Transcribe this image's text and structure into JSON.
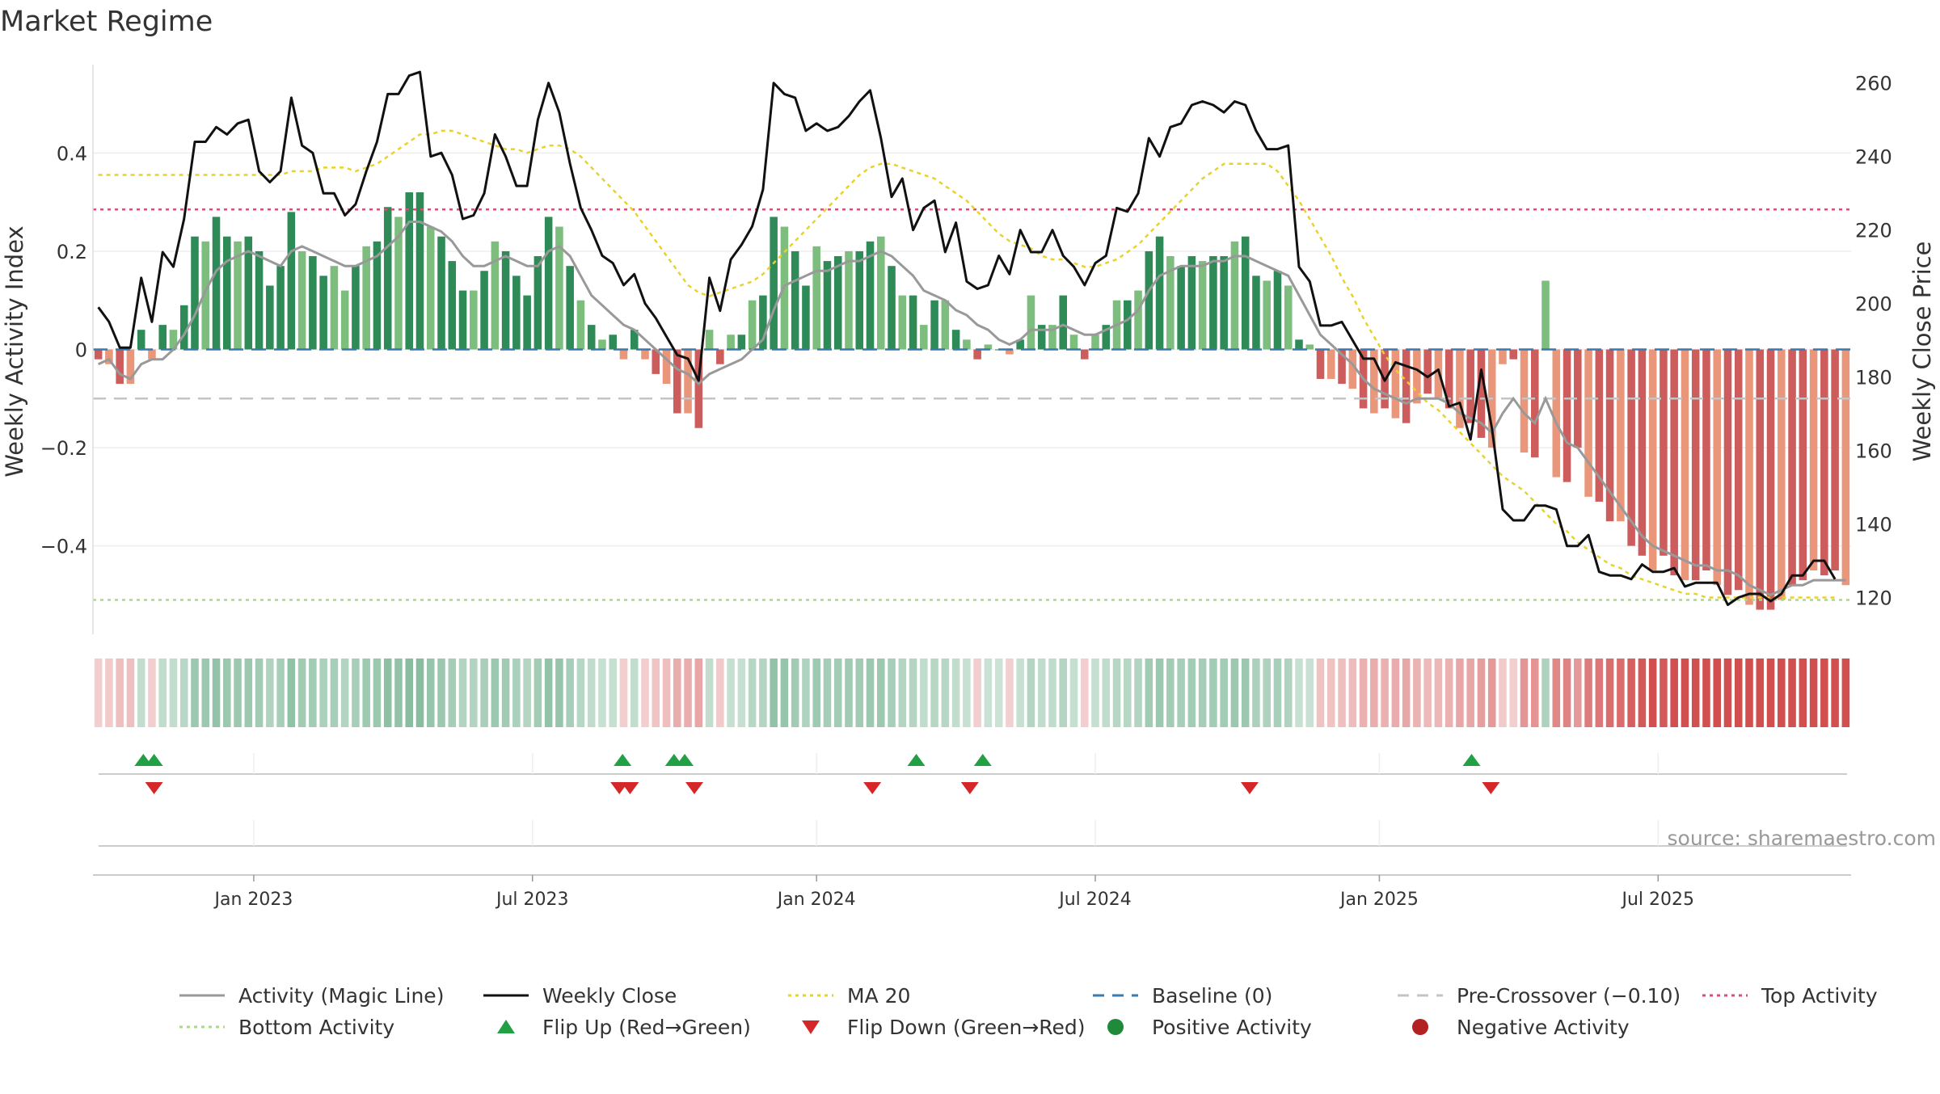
{
  "chart_data": {
    "type": "bar",
    "title": "Market Regime",
    "ylabel": "Weekly Activity Index",
    "y2label": "Weekly Close Price",
    "source": "source: sharemaestro.com",
    "ylim": [
      -0.58,
      0.58
    ],
    "y2lim": [
      110,
      265
    ],
    "y_ticks": [
      0.4,
      0.2,
      0,
      -0.2,
      -0.4
    ],
    "y_tick_labels": [
      "0.4",
      "0.2",
      "0",
      "−0.2",
      "−0.4"
    ],
    "y2_ticks": [
      260,
      240,
      220,
      200,
      180,
      160,
      140,
      120
    ],
    "y2_tick_labels": [
      "260",
      "240",
      "220",
      "200",
      "180",
      "160",
      "140",
      "120"
    ],
    "x_tick_labels": [
      "Jan 2023",
      "Jul 2023",
      "Jan 2024",
      "Jul 2024",
      "Jan 2025",
      "Jul 2025"
    ],
    "x_tick_weeks": [
      14.5,
      40.5,
      67,
      93,
      119.5,
      145.5
    ],
    "grid": true,
    "legend_position": "bottom",
    "reference_lines": {
      "baseline": 0,
      "pre_crossover": -0.1,
      "top_activity": 0.285,
      "bottom_activity": -0.51
    },
    "activity": [
      -0.02,
      -0.03,
      -0.07,
      -0.07,
      0.04,
      -0.02,
      0.05,
      0.04,
      0.09,
      0.23,
      0.22,
      0.27,
      0.23,
      0.22,
      0.23,
      0.2,
      0.13,
      0.17,
      0.28,
      0.2,
      0.19,
      0.15,
      0.17,
      0.12,
      0.17,
      0.21,
      0.22,
      0.29,
      0.27,
      0.32,
      0.32,
      0.25,
      0.23,
      0.18,
      0.12,
      0.12,
      0.16,
      0.22,
      0.2,
      0.15,
      0.11,
      0.19,
      0.27,
      0.25,
      0.17,
      0.1,
      0.05,
      0.02,
      0.03,
      -0.02,
      0.04,
      -0.02,
      -0.05,
      -0.07,
      -0.13,
      -0.13,
      -0.16,
      0.04,
      -0.03,
      0.03,
      0.03,
      0.1,
      0.11,
      0.27,
      0.25,
      0.2,
      0.13,
      0.21,
      0.18,
      0.19,
      0.2,
      0.2,
      0.22,
      0.23,
      0.17,
      0.11,
      0.11,
      0.05,
      0.1,
      0.1,
      0.04,
      0.02,
      -0.02,
      0.01,
      0,
      -0.01,
      0.02,
      0.11,
      0.05,
      0.05,
      0.11,
      0.03,
      -0.02,
      0.03,
      0.05,
      0.1,
      0.1,
      0.12,
      0.2,
      0.23,
      0.19,
      0.17,
      0.19,
      0.18,
      0.19,
      0.19,
      0.22,
      0.23,
      0.15,
      0.14,
      0.16,
      0.13,
      0.02,
      0.01,
      -0.06,
      -0.06,
      -0.07,
      -0.08,
      -0.12,
      -0.13,
      -0.12,
      -0.14,
      -0.15,
      -0.11,
      -0.09,
      -0.1,
      -0.12,
      -0.16,
      -0.15,
      -0.18,
      -0.2,
      -0.03,
      -0.02,
      -0.21,
      -0.22,
      0.14,
      -0.26,
      -0.27,
      -0.2,
      -0.3,
      -0.31,
      -0.35,
      -0.35,
      -0.4,
      -0.42,
      -0.45,
      -0.42,
      -0.46,
      -0.47,
      -0.47,
      -0.45,
      -0.48,
      -0.5,
      -0.49,
      -0.52,
      -0.53,
      -0.53,
      -0.51,
      -0.48,
      -0.47,
      -0.45,
      -0.46,
      -0.45,
      -0.48
    ],
    "magic_line": [
      -0.03,
      -0.02,
      -0.05,
      -0.06,
      -0.03,
      -0.02,
      -0.02,
      0.0,
      0.03,
      0.07,
      0.12,
      0.16,
      0.18,
      0.19,
      0.2,
      0.19,
      0.18,
      0.17,
      0.2,
      0.21,
      0.2,
      0.19,
      0.18,
      0.17,
      0.17,
      0.18,
      0.19,
      0.21,
      0.23,
      0.26,
      0.26,
      0.25,
      0.24,
      0.22,
      0.19,
      0.17,
      0.17,
      0.18,
      0.19,
      0.18,
      0.17,
      0.17,
      0.2,
      0.21,
      0.19,
      0.15,
      0.11,
      0.09,
      0.07,
      0.05,
      0.04,
      0.02,
      0.0,
      -0.02,
      -0.04,
      -0.05,
      -0.07,
      -0.05,
      -0.04,
      -0.03,
      -0.02,
      0.0,
      0.02,
      0.08,
      0.13,
      0.14,
      0.15,
      0.16,
      0.16,
      0.17,
      0.18,
      0.18,
      0.19,
      0.2,
      0.19,
      0.17,
      0.15,
      0.12,
      0.11,
      0.1,
      0.08,
      0.07,
      0.05,
      0.04,
      0.02,
      0.01,
      0.02,
      0.04,
      0.04,
      0.04,
      0.05,
      0.04,
      0.03,
      0.03,
      0.04,
      0.05,
      0.06,
      0.08,
      0.12,
      0.15,
      0.16,
      0.17,
      0.17,
      0.17,
      0.18,
      0.18,
      0.19,
      0.19,
      0.18,
      0.17,
      0.16,
      0.15,
      0.11,
      0.07,
      0.03,
      0.01,
      -0.01,
      -0.03,
      -0.06,
      -0.08,
      -0.09,
      -0.1,
      -0.11,
      -0.1,
      -0.1,
      -0.1,
      -0.11,
      -0.13,
      -0.14,
      -0.15,
      -0.17,
      -0.13,
      -0.1,
      -0.13,
      -0.15,
      -0.1,
      -0.15,
      -0.19,
      -0.2,
      -0.23,
      -0.26,
      -0.29,
      -0.32,
      -0.35,
      -0.38,
      -0.4,
      -0.41,
      -0.42,
      -0.43,
      -0.44,
      -0.44,
      -0.45,
      -0.45,
      -0.46,
      -0.48,
      -0.49,
      -0.5,
      -0.49,
      -0.48,
      -0.48,
      -0.47,
      -0.47,
      -0.47,
      -0.47
    ],
    "weekly_close": [
      199,
      195,
      188,
      188,
      207,
      195,
      214,
      210,
      223,
      244,
      244,
      248,
      246,
      249,
      250,
      236,
      233,
      236,
      256,
      243,
      241,
      230,
      230,
      224,
      227,
      236,
      244,
      257,
      257,
      262,
      263,
      240,
      241,
      235,
      223,
      224,
      230,
      246,
      240,
      232,
      232,
      250,
      260,
      252,
      238,
      226,
      220,
      213,
      211,
      205,
      208,
      200,
      196,
      191,
      186,
      185,
      179,
      207,
      198,
      212,
      216,
      221,
      231,
      260,
      257,
      256,
      247,
      249,
      247,
      248,
      251,
      255,
      258,
      245,
      229,
      234,
      220,
      226,
      228,
      214,
      222,
      206,
      204,
      205,
      213,
      208,
      220,
      214,
      214,
      220,
      213,
      210,
      205,
      211,
      213,
      226,
      225,
      230,
      245,
      240,
      248,
      249,
      254,
      255,
      254,
      252,
      255,
      254,
      247,
      242,
      242,
      243,
      210,
      206,
      194,
      194,
      195,
      190,
      185,
      185,
      179,
      184,
      183,
      182,
      180,
      182,
      172,
      173,
      163,
      182,
      166,
      144,
      141,
      141,
      145,
      145,
      144,
      134,
      134,
      137,
      127,
      126,
      126,
      125,
      129,
      127,
      127,
      128,
      123,
      124,
      124,
      124,
      118,
      120,
      121,
      121,
      119,
      121,
      126,
      126,
      130,
      130,
      125
    ],
    "ma20": [
      235,
      235,
      235,
      235,
      235,
      235,
      235,
      235,
      235,
      235,
      235,
      235,
      235,
      235,
      235,
      235,
      235,
      235,
      236,
      236,
      236,
      237,
      237,
      237,
      236,
      237,
      238,
      240,
      242,
      244,
      246,
      246,
      247,
      247,
      246,
      245,
      244,
      243,
      242,
      242,
      241,
      242,
      243,
      243,
      242,
      240,
      237,
      234,
      231,
      228,
      225,
      221,
      217,
      213,
      209,
      205,
      203,
      202,
      203,
      204,
      205,
      206,
      208,
      211,
      214,
      217,
      220,
      223,
      226,
      229,
      232,
      235,
      237,
      238,
      238,
      237,
      236,
      235,
      234,
      232,
      230,
      228,
      225,
      222,
      219,
      217,
      216,
      215,
      213,
      212,
      212,
      211,
      210,
      210,
      211,
      212,
      214,
      216,
      219,
      222,
      225,
      228,
      231,
      234,
      236,
      238,
      238,
      238,
      238,
      238,
      236,
      232,
      228,
      223,
      218,
      213,
      207,
      202,
      196,
      191,
      186,
      182,
      179,
      176,
      173,
      171,
      168,
      165,
      162,
      159,
      156,
      153,
      151,
      149,
      146,
      143,
      140,
      138,
      135,
      133,
      131,
      129,
      128,
      126,
      125,
      124,
      123,
      122,
      121,
      121,
      120,
      120,
      120,
      120,
      120,
      120,
      120,
      120,
      120,
      120,
      120,
      120,
      120
    ],
    "flip_up_weeks": [
      4.2,
      5.2,
      48.9,
      53.7,
      54.7,
      76.3,
      82.5,
      128.1
    ],
    "flip_down_weeks": [
      5.2,
      48.6,
      49.6,
      55.6,
      72.2,
      81.3,
      107.4,
      129.9
    ]
  },
  "legend": [
    {
      "label": "Activity (Magic Line)",
      "icon": "solid-gray-line",
      "color": "#999999"
    },
    {
      "label": "Weekly Close",
      "icon": "solid-black-line",
      "color": "#111111"
    },
    {
      "label": "MA 20",
      "icon": "dotted-yellow-line",
      "color": "#e8d22c"
    },
    {
      "label": "Baseline (0)",
      "icon": "dashed-blue-line",
      "color": "#3a78b0"
    },
    {
      "label": "Pre-Crossover (−0.10)",
      "icon": "dashed-gray-line",
      "color": "#c4c4c4"
    },
    {
      "label": "Top Activity",
      "icon": "dotted-pink-line",
      "color": "#d94f7a"
    },
    {
      "label": "Bottom Activity",
      "icon": "dotted-green-line",
      "color": "#a8d98a"
    },
    {
      "label": "Flip Up (Red→Green)",
      "icon": "green-up-triangle",
      "color": "#23a046"
    },
    {
      "label": "Flip Down (Green→Red)",
      "icon": "red-down-triangle",
      "color": "#d62728"
    },
    {
      "label": "Positive Activity",
      "icon": "green-dot",
      "color": "#1e8a3a"
    },
    {
      "label": "Negative Activity",
      "icon": "red-dot",
      "color": "#b22222"
    }
  ],
  "colors": {
    "pos_strong": "#2e8b57",
    "pos_light": "#7dbd7d",
    "neg_strong": "#cd5c5c",
    "neg_light": "#e9967a",
    "grid": "#eeeeee",
    "axis_text": "#333333"
  }
}
